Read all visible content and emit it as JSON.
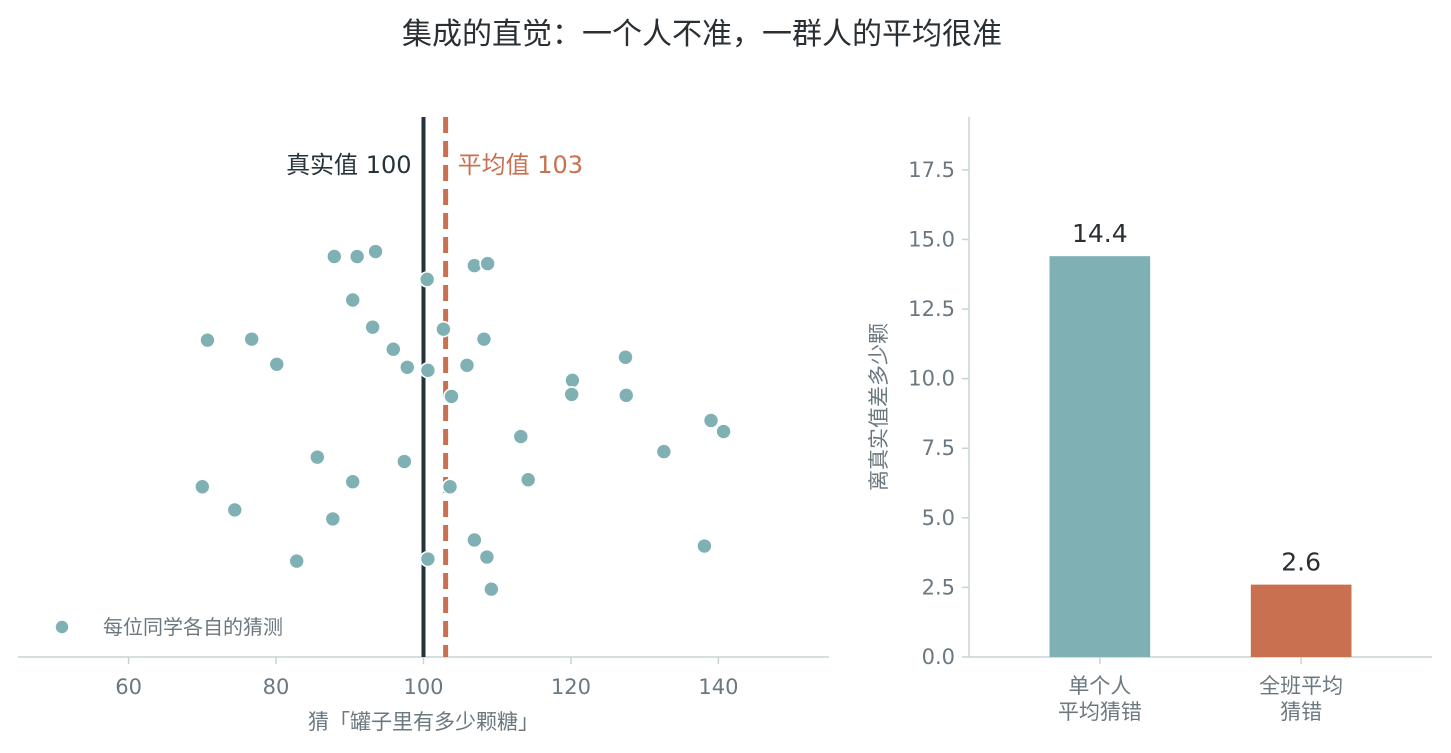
{
  "figure": {
    "title": "集成的直觉：一个人不准，一群人的平均很准"
  },
  "colors": {
    "point": "#7fb0b3",
    "point_edge": "#ffffff",
    "true_line": "#25343a",
    "mean_line": "#c8704f",
    "bar_single": "#7fb0b3",
    "bar_class": "#c8704f",
    "axis": "#c9d3d6",
    "text": "#2a2f33",
    "muted": "#6b7880"
  },
  "chart_data": [
    {
      "type": "scatter",
      "xlabel": "猜「罐子里有多少颗糖」",
      "ylabel": "",
      "xlim": [
        45,
        155
      ],
      "ylim": [
        0,
        1
      ],
      "xticks": [
        60,
        80,
        100,
        120,
        140
      ],
      "xtick_labels": [
        "60",
        "80",
        "100",
        "120",
        "140"
      ],
      "series": [
        {
          "name": "每位同学各自的猜测",
          "x": [
            87.9,
            91.0,
            93.5,
            106.9,
            108.7,
            100.5,
            90.4,
            102.7,
            93.1,
            95.9,
            108.2,
            70.7,
            76.7,
            80.1,
            97.8,
            105.9,
            100.6,
            127.4,
            120.2,
            103.8,
            120.1,
            127.5,
            139.0,
            140.7,
            113.2,
            132.6,
            85.6,
            97.4,
            70.0,
            90.4,
            103.6,
            114.2,
            74.4,
            87.7,
            106.9,
            108.6,
            138.1,
            82.8,
            100.6,
            109.2
          ],
          "y": [
            0.7417,
            0.7416,
            0.7509,
            0.7248,
            0.7285,
            0.6993,
            0.6611,
            0.6071,
            0.6108,
            0.57,
            0.5886,
            0.5867,
            0.5886,
            0.5421,
            0.5365,
            0.5402,
            0.5309,
            0.5551,
            0.5123,
            0.4826,
            0.4863,
            0.4845,
            0.438,
            0.4175,
            0.4082,
            0.3804,
            0.3701,
            0.362,
            0.3153,
            0.3246,
            0.3153,
            0.3283,
            0.2724,
            0.2557,
            0.2167,
            0.1851,
            0.2055,
            0.1776,
            0.1814,
            0.1256
          ]
        }
      ],
      "reference_lines": [
        {
          "name": "true",
          "x": 100,
          "label": "真实值 100"
        },
        {
          "name": "mean",
          "x": 103,
          "label": "平均值 103"
        }
      ],
      "legend": {
        "position": "bottom-left"
      },
      "grid": false
    },
    {
      "type": "bar",
      "categories": [
        "单个人\n平均猜错",
        "全班平均\n猜错"
      ],
      "category_lines": [
        [
          "单个人",
          "平均猜错"
        ],
        [
          "全班平均",
          "猜错"
        ]
      ],
      "values": [
        14.4,
        2.6
      ],
      "value_labels": [
        "14.4",
        "2.6"
      ],
      "ylabel": "离真实值差多少颗",
      "ylim": [
        0,
        19.4
      ],
      "yticks": [
        0.0,
        2.5,
        5.0,
        7.5,
        10.0,
        12.5,
        15.0,
        17.5
      ],
      "ytick_labels": [
        "0.0",
        "2.5",
        "5.0",
        "7.5",
        "10.0",
        "12.5",
        "15.0",
        "17.5"
      ],
      "grid": false
    }
  ]
}
